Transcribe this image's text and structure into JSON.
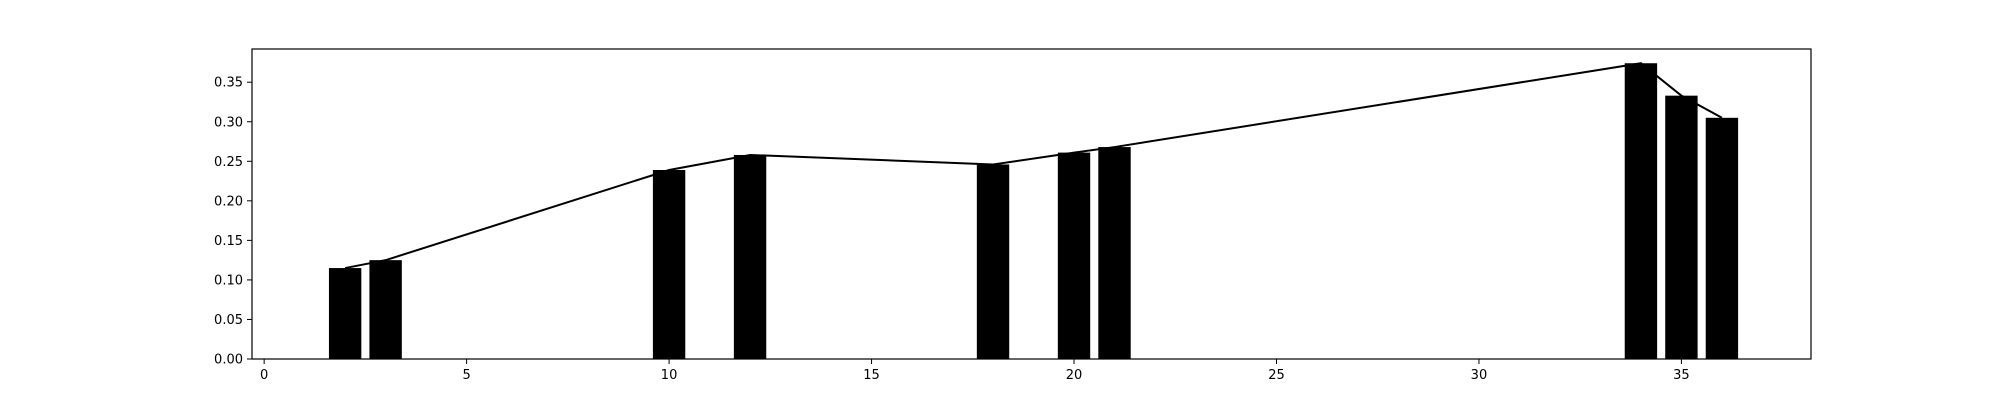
{
  "chart_data": {
    "type": "bar",
    "xlim": [
      -0.3,
      38.2
    ],
    "ylim": [
      0,
      0.392
    ],
    "xticks": [
      0,
      5,
      10,
      15,
      20,
      25,
      30,
      35
    ],
    "yticks": [
      0.0,
      0.05,
      0.1,
      0.15,
      0.2,
      0.25,
      0.3,
      0.35
    ],
    "xtick_labels": [
      "0",
      "5",
      "10",
      "15",
      "20",
      "25",
      "30",
      "35"
    ],
    "ytick_labels": [
      "0.00",
      "0.05",
      "0.10",
      "0.15",
      "0.20",
      "0.25",
      "0.30",
      "0.35"
    ],
    "bar_width": 0.8,
    "bars": {
      "x": [
        2,
        3,
        10,
        12,
        18,
        20,
        21,
        34,
        35,
        36
      ],
      "values": [
        0.115,
        0.125,
        0.239,
        0.258,
        0.246,
        0.261,
        0.268,
        0.374,
        0.333,
        0.305
      ]
    },
    "line": {
      "x": [
        2,
        3,
        10,
        12,
        18,
        20,
        21,
        34,
        35,
        36
      ],
      "values": [
        0.115,
        0.125,
        0.239,
        0.258,
        0.246,
        0.261,
        0.268,
        0.374,
        0.333,
        0.305
      ]
    },
    "colors": {
      "bar": "#000000",
      "line": "#000000",
      "axes": "#000000"
    },
    "grid": false,
    "legend": false
  }
}
